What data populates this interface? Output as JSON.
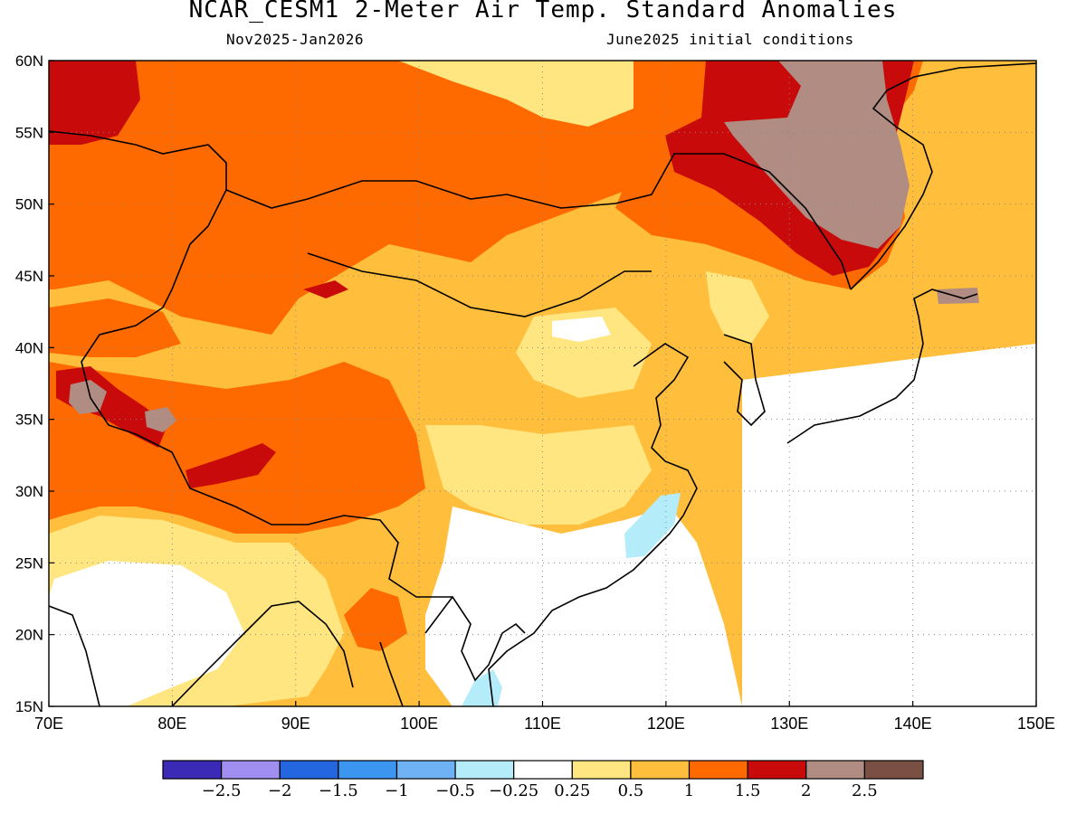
{
  "title": "NCAR_CESM1 2-Meter Air Temp. Standard Anomalies",
  "subtitle_left": "Nov2025-Jan2026",
  "subtitle_right": "June2025 initial conditions",
  "map": {
    "lon_labels": [
      "70E",
      "80E",
      "90E",
      "100E",
      "110E",
      "120E",
      "130E",
      "140E",
      "150E"
    ],
    "lat_labels": [
      "60N",
      "55N",
      "50N",
      "45N",
      "40N",
      "35N",
      "30N",
      "25N",
      "20N",
      "15N"
    ],
    "lon_range": [
      70,
      150
    ],
    "lat_range": [
      15,
      60
    ],
    "grid": "dotted"
  },
  "colorbar": {
    "colors": [
      "#3a2ab5",
      "#a08ff0",
      "#2366e0",
      "#3c96f0",
      "#6fb1f5",
      "#b4ecfa",
      "#ffffff",
      "#ffe680",
      "#ffbe3c",
      "#ff6a00",
      "#c80a0a",
      "#b08c82",
      "#7a5044"
    ],
    "labels": [
      "-2.5",
      "-2",
      "-1.5",
      "-1",
      "-0.5",
      "-0.25",
      "0.25",
      "0.5",
      "1",
      "1.5",
      "2",
      "2.5"
    ]
  },
  "anomaly_colors": {
    "land_default": "#ffffff",
    "weak_positive": "#ffe680",
    "moderate_positive": "#ffbe3c",
    "strong_positive": "#ff6a00",
    "very_strong_positive": "#c80a0a",
    "extreme_positive": "#b08c82",
    "weak_negative": "#b4ecfa"
  }
}
